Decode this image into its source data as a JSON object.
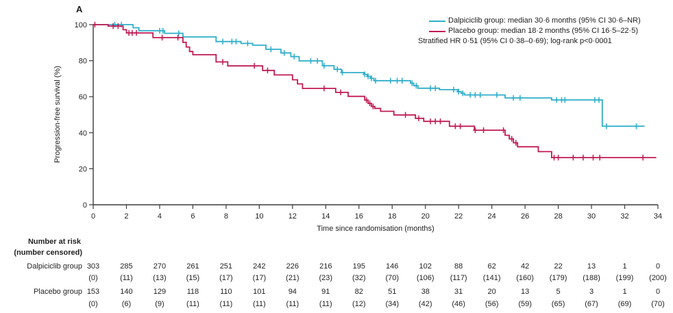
{
  "chart_data": {
    "type": "line",
    "subtype": "kaplan_meier_step",
    "panel_label": "A",
    "xlabel": "Time since randomisation (months)",
    "ylabel": "Progression-free survival (%)",
    "xlim": [
      0,
      34
    ],
    "ylim": [
      0,
      100
    ],
    "xticks": [
      0,
      2,
      4,
      6,
      8,
      10,
      12,
      14,
      16,
      18,
      20,
      22,
      24,
      26,
      28,
      30,
      32,
      34
    ],
    "yticks": [
      0,
      20,
      40,
      60,
      80,
      100
    ],
    "grid": false,
    "legend_position": "top-right",
    "annotation": "Stratified HR 0·51 (95% CI 0·38–0·69); log-rank p<0·0001",
    "colors": {
      "axis": "#3a3a3a",
      "text": "#222222",
      "background": "#ffffff"
    },
    "series": [
      {
        "name": "Dalpiciclib group",
        "legend_label": "Dalpiciclib group: median 30·6 months (95% CI 30·6–NR)",
        "color": "#2EAEC9",
        "end_time": 33.2,
        "steps": [
          [
            0,
            100
          ],
          [
            2.4,
            98.3
          ],
          [
            2.75,
            96.6
          ],
          [
            4.3,
            95.2
          ],
          [
            5.4,
            93.2
          ],
          [
            7.4,
            90.6
          ],
          [
            8.9,
            89.6
          ],
          [
            9.6,
            88.6
          ],
          [
            10.4,
            86.3
          ],
          [
            11.3,
            84.3
          ],
          [
            11.9,
            82.3
          ],
          [
            12.4,
            79.9
          ],
          [
            13.8,
            77.2
          ],
          [
            14.5,
            75.2
          ],
          [
            14.95,
            73.4
          ],
          [
            16.3,
            72.4
          ],
          [
            16.5,
            71.3
          ],
          [
            16.7,
            70.2
          ],
          [
            16.9,
            68.9
          ],
          [
            19.1,
            67.5
          ],
          [
            19.3,
            66.1
          ],
          [
            19.55,
            64.7
          ],
          [
            20.85,
            63.9
          ],
          [
            21.95,
            62.8
          ],
          [
            22.15,
            61.9
          ],
          [
            22.35,
            61.0
          ],
          [
            24.8,
            59.3
          ],
          [
            27.6,
            58.2
          ],
          [
            30.65,
            43.6
          ]
        ],
        "censor_times": [
          1.3,
          1.7,
          4.0,
          4.2,
          5.15,
          7.8,
          8.35,
          8.6,
          9.3,
          10.7,
          11.5,
          12.1,
          13.1,
          13.5,
          13.9,
          14.7,
          15.0,
          16.35,
          16.55,
          16.75,
          17.0,
          17.9,
          18.3,
          18.6,
          19.2,
          19.45,
          20.3,
          20.6,
          21.7,
          22.0,
          22.25,
          22.7,
          23.0,
          23.3,
          24.3,
          25.3,
          25.7,
          27.9,
          28.2,
          28.4,
          30.2,
          30.45,
          30.9,
          32.7
        ]
      },
      {
        "name": "Placebo group",
        "legend_label": "Placebo group: median 18·2 months (95% CI 16·5–22·5)",
        "color": "#C01952",
        "end_time": 33.9,
        "steps": [
          [
            0,
            100
          ],
          [
            0.9,
            99.2
          ],
          [
            1.8,
            97.2
          ],
          [
            2.0,
            95.4
          ],
          [
            3.6,
            92.8
          ],
          [
            5.4,
            90.2
          ],
          [
            5.6,
            87.6
          ],
          [
            5.8,
            85.1
          ],
          [
            6.0,
            83.3
          ],
          [
            7.4,
            79.3
          ],
          [
            8.1,
            77.1
          ],
          [
            10.2,
            74.6
          ],
          [
            10.9,
            72.1
          ],
          [
            12.0,
            69.4
          ],
          [
            12.3,
            67.1
          ],
          [
            12.6,
            64.6
          ],
          [
            14.6,
            62.4
          ],
          [
            15.35,
            60.2
          ],
          [
            16.35,
            58.1
          ],
          [
            16.55,
            56.3
          ],
          [
            16.75,
            54.6
          ],
          [
            16.95,
            53.5
          ],
          [
            17.3,
            51.9
          ],
          [
            18.1,
            49.9
          ],
          [
            19.4,
            48.0
          ],
          [
            19.9,
            46.3
          ],
          [
            21.45,
            43.6
          ],
          [
            22.95,
            41.4
          ],
          [
            24.8,
            38.6
          ],
          [
            25.05,
            36.6
          ],
          [
            25.3,
            34.4
          ],
          [
            25.55,
            32.2
          ],
          [
            26.8,
            29.5
          ],
          [
            27.6,
            26.2
          ]
        ],
        "censor_times": [
          0.1,
          1.2,
          1.5,
          2.15,
          2.35,
          2.6,
          4.15,
          5.1,
          7.8,
          9.7,
          10.5,
          13.9,
          14.9,
          16.45,
          16.65,
          16.85,
          18.8,
          19.6,
          20.3,
          20.6,
          20.9,
          21.8,
          22.1,
          23.0,
          23.5,
          24.7,
          25.2,
          25.45,
          27.75,
          28.0,
          28.9,
          29.5,
          30.1,
          30.5,
          33.1
        ]
      }
    ],
    "risk_table": {
      "header_line1": "Number at risk",
      "header_line2": "(number censored)",
      "times": [
        0,
        2,
        4,
        6,
        8,
        10,
        12,
        14,
        16,
        18,
        20,
        22,
        24,
        26,
        28,
        30,
        32,
        34
      ],
      "rows": [
        {
          "label": "Dalpiciclib group",
          "at_risk": [
            303,
            285,
            270,
            261,
            251,
            242,
            226,
            216,
            195,
            146,
            102,
            88,
            62,
            42,
            22,
            13,
            1,
            0
          ],
          "censored": [
            "(0)",
            "(11)",
            "(13)",
            "(15)",
            "(17)",
            "(17)",
            "(21)",
            "(23)",
            "(32)",
            "(70)",
            "(106)",
            "(117)",
            "(141)",
            "(160)",
            "(179)",
            "(188)",
            "(199)",
            "(200)"
          ]
        },
        {
          "label": "Placebo group",
          "at_risk": [
            153,
            140,
            129,
            118,
            110,
            101,
            94,
            91,
            82,
            51,
            38,
            31,
            20,
            13,
            5,
            3,
            1,
            0
          ],
          "censored": [
            "(0)",
            "(6)",
            "(9)",
            "(11)",
            "(11)",
            "(11)",
            "(11)",
            "(11)",
            "(12)",
            "(34)",
            "(42)",
            "(46)",
            "(56)",
            "(59)",
            "(65)",
            "(67)",
            "(69)",
            "(70)"
          ]
        }
      ]
    }
  }
}
